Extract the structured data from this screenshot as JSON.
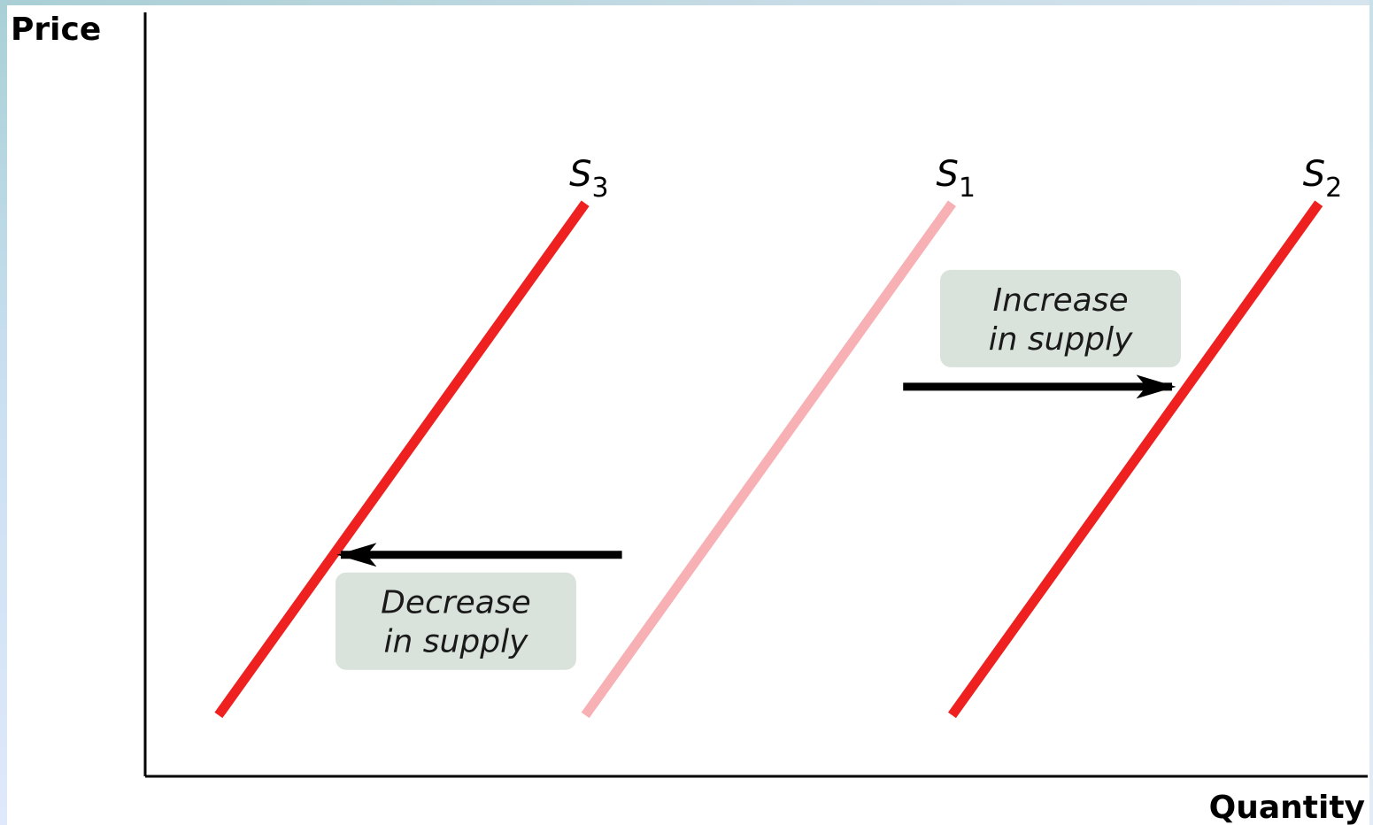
{
  "chart_data": {
    "type": "line",
    "xlabel": "Quantity",
    "ylabel": "Price",
    "xlim": [
      0,
      10
    ],
    "ylim": [
      0,
      10
    ],
    "grid": false,
    "legend": "none",
    "series": [
      {
        "name": "S",
        "subscript": "3",
        "color": "#ee2020",
        "x": [
          0.6,
          3.6
        ],
        "y": [
          0.8,
          7.5
        ]
      },
      {
        "name": "S",
        "subscript": "1",
        "color": "#f7b0b4",
        "x": [
          3.6,
          6.6
        ],
        "y": [
          0.8,
          7.5
        ]
      },
      {
        "name": "S",
        "subscript": "2",
        "color": "#ee2020",
        "x": [
          6.6,
          9.6
        ],
        "y": [
          0.8,
          7.5
        ]
      }
    ],
    "annotations": [
      {
        "line1": "Increase",
        "line2": "in supply",
        "arrow_from": [
          6.2,
          5.1
        ],
        "arrow_to": [
          8.4,
          5.1
        ],
        "box_color": "#d9e3dc"
      },
      {
        "line1": "Decrease",
        "line2": "in supply",
        "arrow_from": [
          3.9,
          2.9
        ],
        "arrow_to": [
          1.6,
          2.9
        ],
        "box_color": "#d9e3dc"
      }
    ]
  }
}
